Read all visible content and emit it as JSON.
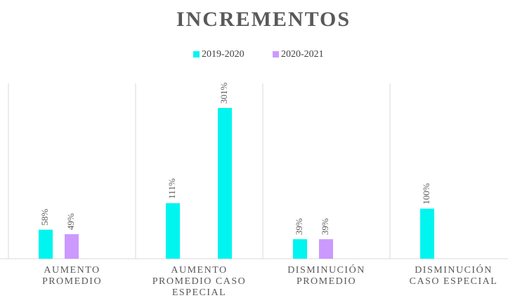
{
  "chart_data": {
    "type": "bar",
    "title": "INCREMENTOS",
    "categories": [
      [
        "AUMENTO",
        "PROMEDIO"
      ],
      [
        "AUMENTO",
        "PROMEDIO CASO",
        "ESPECIAL"
      ],
      [
        "DISMINUCIÓN",
        "PROMEDIO"
      ],
      [
        "DISMINUCIÓN",
        "CASO ESPECIAL"
      ]
    ],
    "series": [
      {
        "name": "2019-2020",
        "color": "#00f5f0",
        "values": [
          58,
          111,
          39,
          100
        ],
        "value_labels": [
          "58%",
          "111%",
          "39%",
          "100%"
        ]
      },
      {
        "name": "2020-2021",
        "color": "#cc99ff",
        "values": [
          49,
          null,
          39,
          null
        ],
        "value_labels": [
          "49%",
          null,
          "39%",
          null
        ]
      },
      {
        "color": "#00f5f0",
        "values": [
          null,
          301,
          null,
          null
        ],
        "value_labels": [
          null,
          "301%",
          null,
          null
        ]
      }
    ],
    "ylim": [
      0,
      350
    ]
  }
}
